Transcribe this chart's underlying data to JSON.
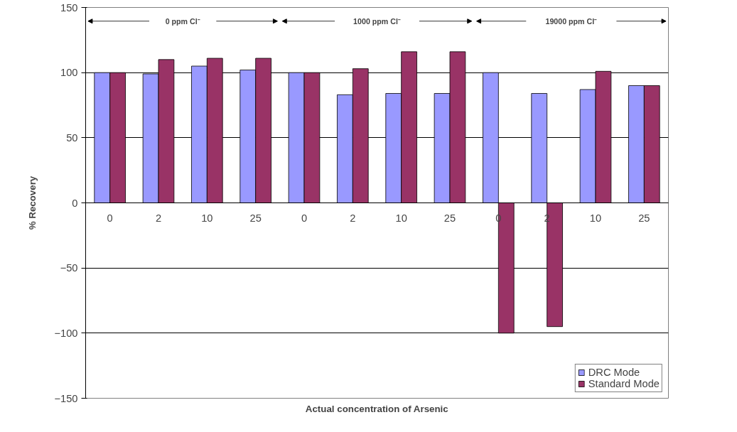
{
  "chart_data": {
    "type": "bar",
    "xlabel": "Actual concentration of Arsenic",
    "ylabel": "% Recovery",
    "categories": [
      "0",
      "2",
      "10",
      "25",
      "0",
      "2",
      "10",
      "25",
      "0",
      "2",
      "10",
      "25"
    ],
    "series": [
      {
        "name": "DRC Mode",
        "color": "#9999ff",
        "values": [
          100,
          99,
          105,
          102,
          100,
          83,
          84,
          84,
          100,
          84,
          87,
          90
        ]
      },
      {
        "name": "Standard Mode",
        "color": "#993366",
        "values": [
          100,
          110,
          111,
          111,
          100,
          103,
          116,
          116,
          -100,
          -95,
          101,
          90
        ]
      }
    ],
    "annotations": [
      "0 ppm Cl⁻",
      "1000 ppm Cl⁻",
      "19000 ppm Cl⁻"
    ],
    "ylim": [
      -150,
      150
    ],
    "yticks": [
      -150,
      -100,
      -50,
      0,
      50,
      100,
      150
    ],
    "grid": "y",
    "legend": "bottom right"
  }
}
